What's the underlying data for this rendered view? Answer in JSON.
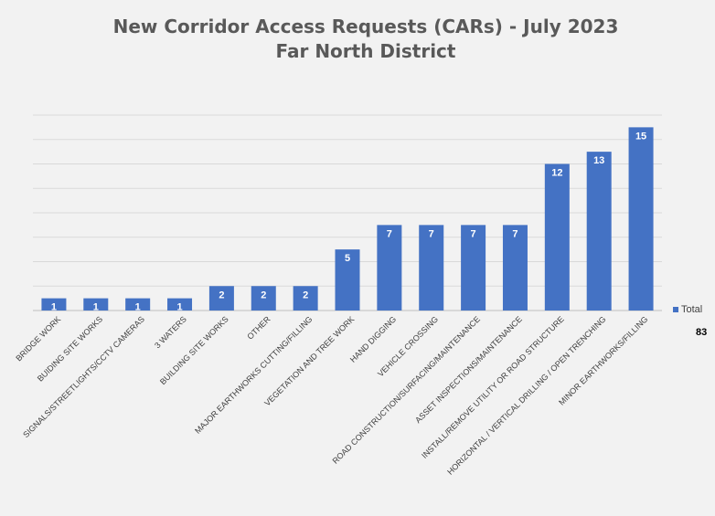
{
  "chart_data": {
    "type": "bar",
    "title_lines": [
      "New Corridor Access Requests (CARs) - July 2023",
      "Far North District"
    ],
    "categories": [
      "BRIDGE WORK",
      "BUIDING SITE WORKS",
      "SIGNALS/STREETLIGHTS/CCTV CAMERAS",
      "3 WATERS",
      "BUILDING SITE WORKS",
      "OTHER",
      "MAJOR EARTHWORKS CUTTING/FILLING",
      "VEGETATION AND TREE WORK",
      "HAND DIGGING",
      "VEHICLE CROSSING",
      "ROAD CONSTRUCTION/SURFACING/MAINTENANCE",
      "ASSET INSPECTIONS/MAINTENANCE",
      "INSTALL/REMOVE UTILITY OR ROAD STRUCTURE",
      "HORIZONTAL / VERTICAL DRILLING / OPEN TRENCHING",
      "MINOR EARTHWORKS/FILLING"
    ],
    "series": [
      {
        "name": "Total",
        "values": [
          1,
          1,
          1,
          1,
          2,
          2,
          2,
          5,
          7,
          7,
          7,
          7,
          12,
          13,
          15
        ]
      }
    ],
    "ylim": [
      0,
      16
    ],
    "grid": true,
    "legend_position": "right",
    "total_label": "83",
    "bar_color": "#4472c4"
  }
}
